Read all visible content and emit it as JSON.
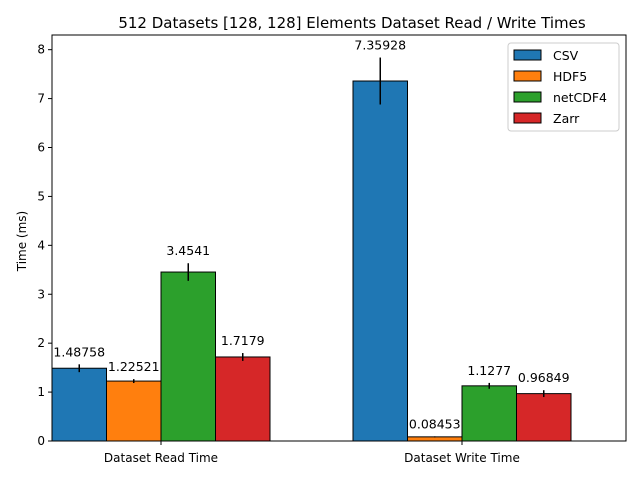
{
  "chart_data": {
    "type": "bar",
    "title": "512 Datasets [128, 128] Elements Dataset Read / Write Times",
    "xlabel": "",
    "ylabel": "Time (ms)",
    "ylim": [
      0,
      8.3
    ],
    "yticks": [
      0,
      1,
      2,
      3,
      4,
      5,
      6,
      7,
      8
    ],
    "categories": [
      "Dataset Read Time",
      "Dataset Write Time"
    ],
    "legend_position": "top-right",
    "grid": false,
    "series": [
      {
        "name": "CSV",
        "color": "#1f77b4",
        "values": [
          1.48758,
          7.35928
        ],
        "labels": [
          "1.48758",
          "7.35928"
        ],
        "errors": [
          0.08,
          0.48
        ]
      },
      {
        "name": "HDF5",
        "color": "#ff7f0e",
        "values": [
          1.22521,
          0.08453
        ],
        "labels": [
          "1.22521",
          "0.08453"
        ],
        "errors": [
          0.04,
          0.01
        ]
      },
      {
        "name": "netCDF4",
        "color": "#2ca02c",
        "values": [
          3.4541,
          1.1277
        ],
        "labels": [
          "3.4541",
          "1.1277"
        ],
        "errors": [
          0.18,
          0.06
        ]
      },
      {
        "name": "Zarr",
        "color": "#d62728",
        "values": [
          1.7179,
          0.96849
        ],
        "labels": [
          "1.7179",
          "0.96849"
        ],
        "errors": [
          0.08,
          0.07
        ]
      }
    ]
  }
}
